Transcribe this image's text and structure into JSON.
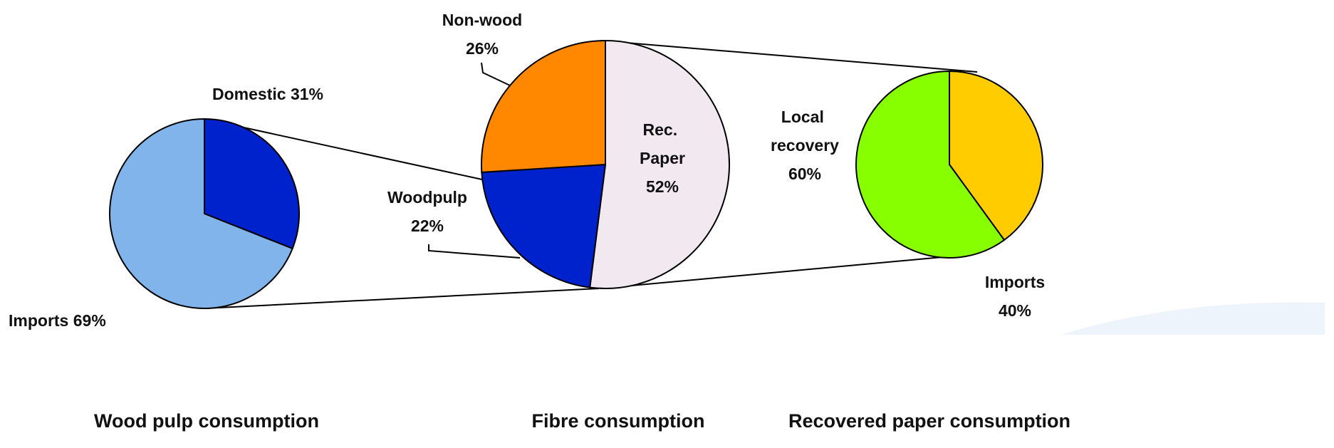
{
  "chart_data": [
    {
      "type": "pie",
      "title": "Wood pulp consumption",
      "categories": [
        "Domestic",
        "Imports"
      ],
      "values": [
        31,
        69
      ],
      "value_labels": [
        "31%",
        "69%"
      ],
      "colors": [
        "#0022cc",
        "#80b4ea"
      ]
    },
    {
      "type": "pie",
      "title": "Fibre consumption",
      "categories": [
        "Rec. Paper",
        "Woodpulp",
        "Non-wood"
      ],
      "values": [
        52,
        22,
        26
      ],
      "value_labels": [
        "52%",
        "22%",
        "26%"
      ],
      "colors": [
        "#f1e9ef",
        "#0022cc",
        "#ff8800"
      ]
    },
    {
      "type": "pie",
      "title": "Recovered paper consumption",
      "categories": [
        "Imports",
        "Local recovery"
      ],
      "values": [
        40,
        60
      ],
      "value_labels": [
        "40%",
        "60%"
      ],
      "colors": [
        "#ffcc00",
        "#88ff00"
      ]
    }
  ]
}
